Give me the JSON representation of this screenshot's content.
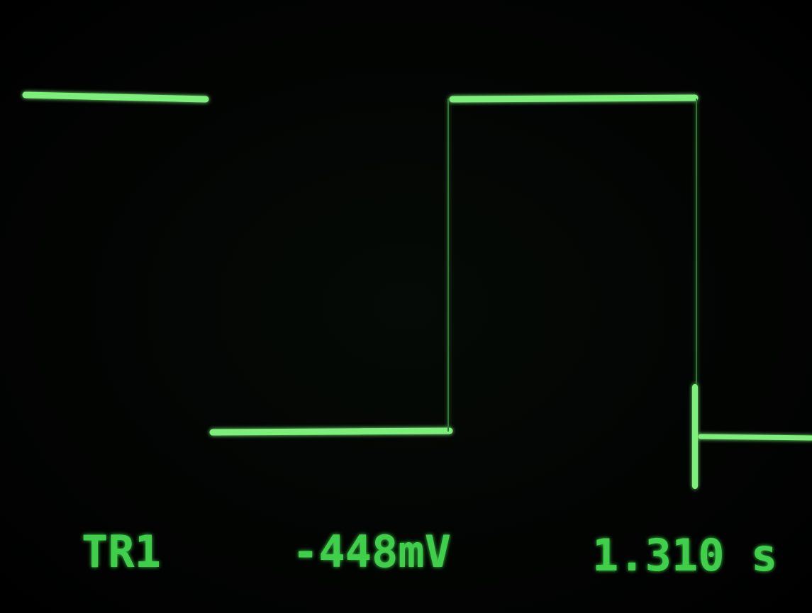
{
  "readout": {
    "trigger": "TR1",
    "voltage": "-448mV",
    "time": "1.310 s"
  }
}
